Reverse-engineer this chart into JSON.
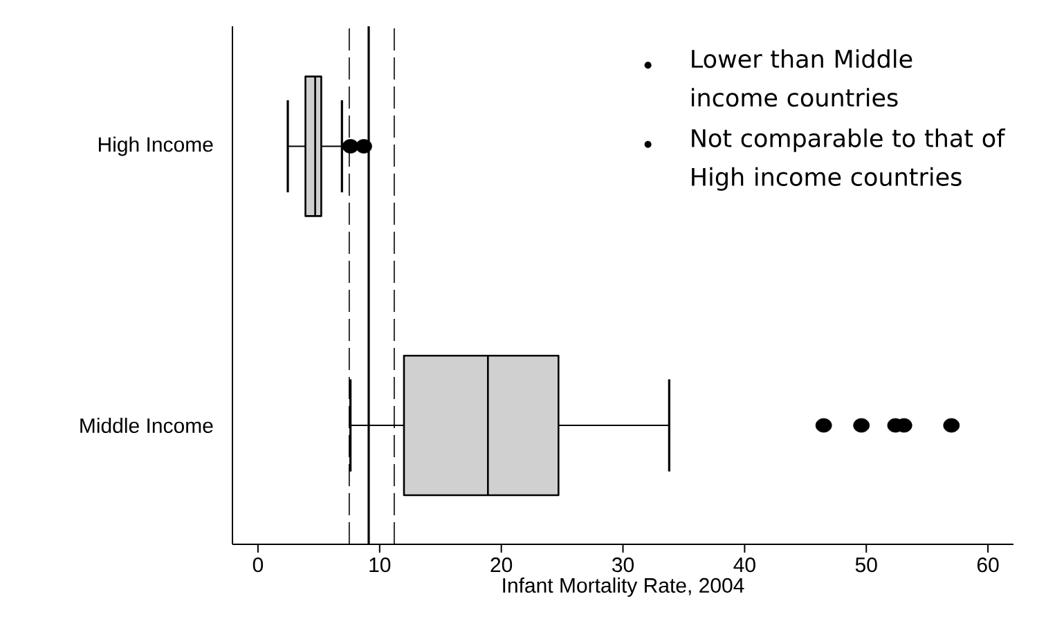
{
  "chart_data": {
    "type": "box",
    "orientation": "horizontal",
    "categories": [
      "High Income",
      "Middle Income"
    ],
    "xlabel": "Infant Mortality Rate, 2004",
    "xlim": [
      -2.1,
      62.1
    ],
    "xticks": [
      0,
      10,
      20,
      30,
      40,
      50,
      60
    ],
    "marker": "circle",
    "series": [
      {
        "color": "#d0d0d0",
        "boxes": [
          {
            "low": 2.45,
            "q1": 3.9,
            "median": 4.7,
            "q3": 5.2,
            "high": 6.9,
            "outliers": [
              7.6,
              8.7
            ]
          },
          {
            "low": 7.6,
            "q1": 12.0,
            "median": 18.9,
            "q3": 24.7,
            "high": 33.8,
            "outliers": [
              46.5,
              49.6,
              52.4,
              53.1,
              57.0
            ]
          }
        ]
      }
    ],
    "ref_lines": [
      {
        "axis": "x",
        "value": 7.5,
        "line_style": "dashed"
      },
      {
        "axis": "x",
        "value": 9.1,
        "line_style": "solid"
      },
      {
        "axis": "x",
        "value": 11.2,
        "line_style": "dashed"
      }
    ],
    "annotations": [
      "Lower than Middle income countries",
      "Not comparable to that of High income countries"
    ]
  }
}
